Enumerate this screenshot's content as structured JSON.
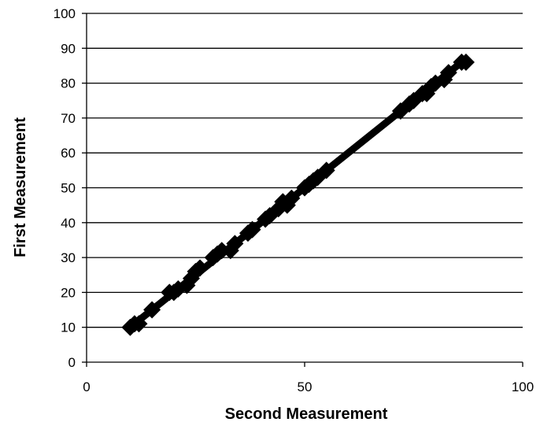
{
  "chart_data": {
    "type": "scatter",
    "title": "",
    "xlabel": "Second Measurement",
    "ylabel": "First Measurement",
    "xlim": [
      0,
      100
    ],
    "ylim": [
      0,
      100
    ],
    "x_ticks": [
      0,
      50,
      100
    ],
    "y_ticks": [
      0,
      10,
      20,
      30,
      40,
      50,
      60,
      70,
      80,
      90,
      100
    ],
    "grid": "horizontal",
    "legend": "none",
    "marker": "diamond",
    "colors": {
      "marker": "#000000",
      "line": "#000000",
      "grid": "#000000",
      "background": "#ffffff"
    },
    "trendline": {
      "from": [
        10,
        10
      ],
      "to": [
        86,
        86
      ]
    },
    "series": [
      {
        "points": [
          [
            10,
            10
          ],
          [
            11,
            11
          ],
          [
            12,
            11
          ],
          [
            15,
            15
          ],
          [
            19,
            20
          ],
          [
            20,
            20
          ],
          [
            21,
            21
          ],
          [
            23,
            22
          ],
          [
            24,
            24
          ],
          [
            25,
            26
          ],
          [
            26,
            27
          ],
          [
            29,
            30
          ],
          [
            30,
            31
          ],
          [
            31,
            32
          ],
          [
            33,
            32
          ],
          [
            34,
            34
          ],
          [
            37,
            37
          ],
          [
            38,
            38
          ],
          [
            41,
            41
          ],
          [
            42,
            42
          ],
          [
            44,
            44
          ],
          [
            45,
            46
          ],
          [
            46,
            45
          ],
          [
            47,
            47
          ],
          [
            50,
            50
          ],
          [
            51,
            51
          ],
          [
            52,
            52
          ],
          [
            53,
            53
          ],
          [
            55,
            55
          ],
          [
            72,
            72
          ],
          [
            74,
            74
          ],
          [
            75,
            75
          ],
          [
            77,
            77
          ],
          [
            78,
            77
          ],
          [
            79,
            79
          ],
          [
            80,
            80
          ],
          [
            82,
            81
          ],
          [
            83,
            83
          ],
          [
            86,
            86
          ],
          [
            87,
            86
          ]
        ]
      }
    ]
  }
}
